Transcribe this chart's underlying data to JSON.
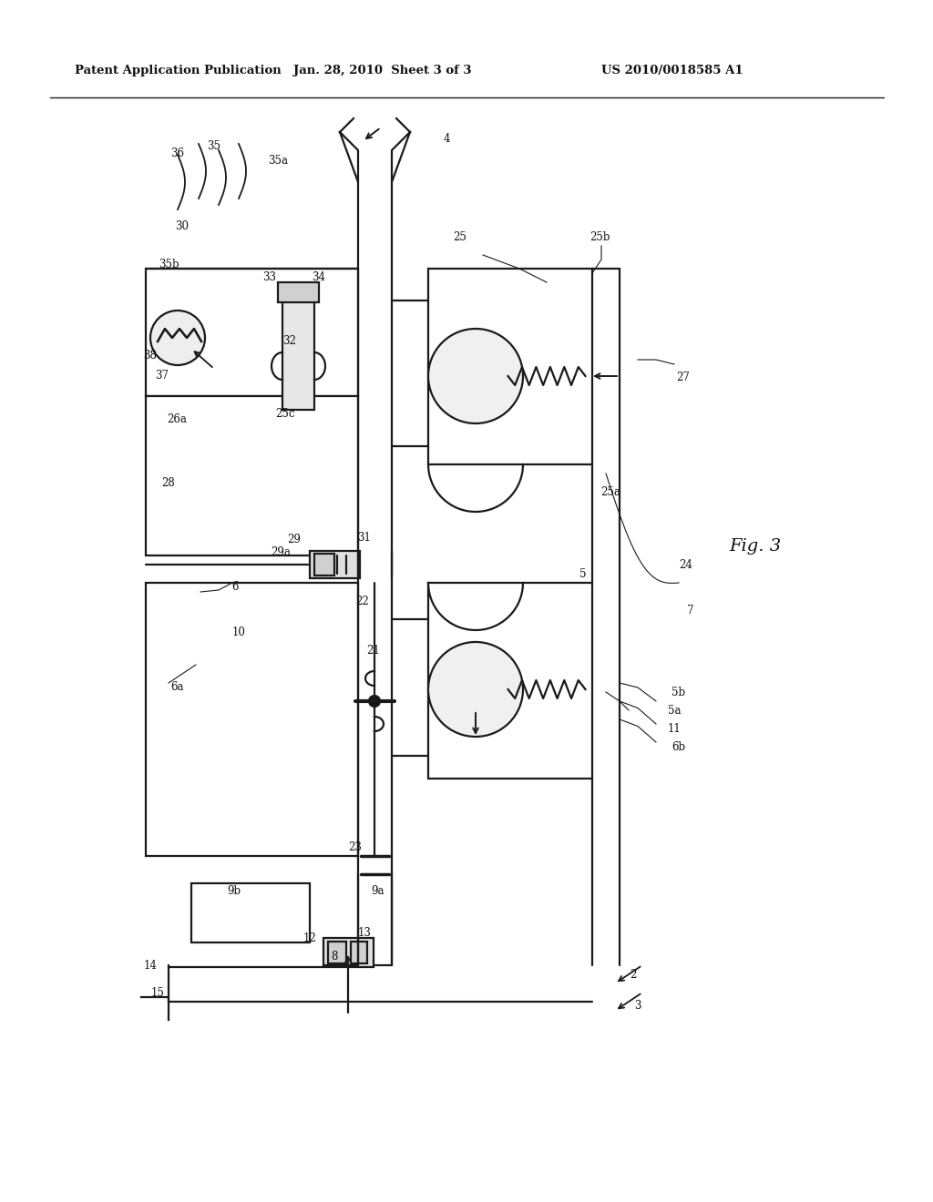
{
  "bg_color": "#ffffff",
  "lc": "#1a1a1a",
  "header_left": "Patent Application Publication",
  "header_center": "Jan. 28, 2010  Sheet 3 of 3",
  "header_right": "US 2010/0018585 A1",
  "fig_label": "Fig. 3"
}
